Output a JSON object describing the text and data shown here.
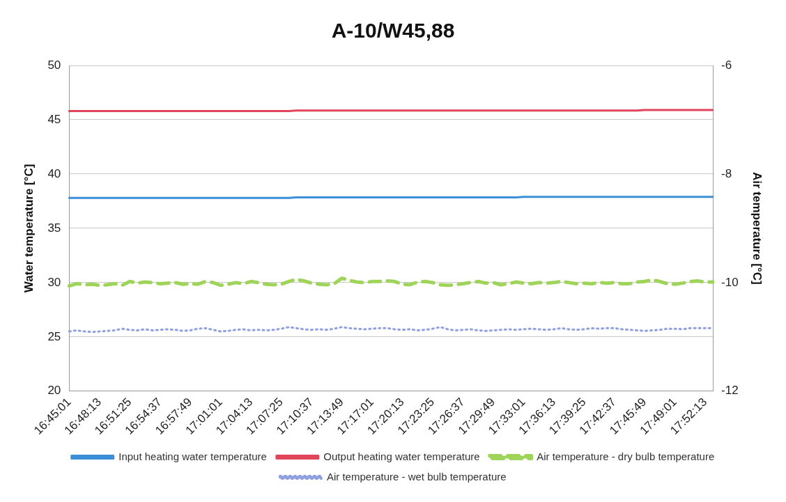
{
  "chart_data": {
    "type": "line",
    "title": "A-10/W45,88",
    "ylabel": "Water temperature [°C]",
    "y2label": "Air temperature [°C]",
    "categories": [
      "16:45:01",
      null,
      null,
      null,
      "16:48:13",
      null,
      null,
      null,
      "16:51:25",
      null,
      null,
      null,
      "16:54:37",
      null,
      null,
      null,
      "16:57:49",
      null,
      null,
      null,
      "17:01:01",
      null,
      null,
      null,
      "17:04:13",
      null,
      null,
      null,
      "17:07:25",
      null,
      null,
      null,
      "17:10:37",
      null,
      null,
      null,
      "17:13:49",
      null,
      null,
      null,
      "17:17:01",
      null,
      null,
      null,
      "17:20:13",
      null,
      null,
      null,
      "17:23:25",
      null,
      null,
      null,
      "17:26:37",
      null,
      null,
      null,
      "17:29:49",
      null,
      null,
      null,
      "17:33:01",
      null,
      null,
      null,
      "17:36:13",
      null,
      null,
      null,
      "17:39:25",
      null,
      null,
      null,
      "17:42:37",
      null,
      null,
      null,
      "17:45:49",
      null,
      null,
      null,
      "17:49:01",
      null,
      null,
      null,
      "17:52:13",
      null
    ],
    "series": [
      {
        "name": "Input heating water temperature",
        "color": "#3a8fd6",
        "line_style": "solid",
        "values": [
          37.8,
          37.8,
          37.8,
          37.8,
          37.8,
          37.8,
          37.8,
          37.8,
          37.8,
          37.8,
          37.8,
          37.8,
          37.8,
          37.8,
          37.8,
          37.8,
          37.8,
          37.8,
          37.8,
          37.8,
          37.8,
          37.8,
          37.8,
          37.8,
          37.8,
          37.8,
          37.8,
          37.8,
          37.8,
          37.8,
          37.85,
          37.85,
          37.85,
          37.85,
          37.85,
          37.85,
          37.85,
          37.85,
          37.85,
          37.85,
          37.85,
          37.85,
          37.85,
          37.85,
          37.85,
          37.85,
          37.85,
          37.85,
          37.85,
          37.85,
          37.85,
          37.85,
          37.85,
          37.85,
          37.85,
          37.85,
          37.85,
          37.85,
          37.85,
          37.85,
          37.9,
          37.9,
          37.9,
          37.9,
          37.9,
          37.9,
          37.9,
          37.9,
          37.9,
          37.9,
          37.9,
          37.9,
          37.9,
          37.9,
          37.9,
          37.9,
          37.9,
          37.9,
          37.9,
          37.9,
          37.9,
          37.9,
          37.9,
          37.9,
          37.9,
          37.9
        ]
      },
      {
        "name": "Output heating water temperature",
        "color": "#e0455a",
        "line_style": "solid",
        "values": [
          45.8,
          45.8,
          45.8,
          45.8,
          45.8,
          45.8,
          45.8,
          45.8,
          45.8,
          45.8,
          45.8,
          45.8,
          45.8,
          45.8,
          45.8,
          45.8,
          45.8,
          45.8,
          45.8,
          45.8,
          45.8,
          45.8,
          45.8,
          45.8,
          45.8,
          45.8,
          45.8,
          45.8,
          45.8,
          45.8,
          45.85,
          45.85,
          45.85,
          45.85,
          45.85,
          45.85,
          45.85,
          45.85,
          45.85,
          45.85,
          45.85,
          45.85,
          45.85,
          45.85,
          45.85,
          45.85,
          45.85,
          45.85,
          45.85,
          45.85,
          45.85,
          45.85,
          45.85,
          45.85,
          45.85,
          45.85,
          45.85,
          45.85,
          45.85,
          45.85,
          45.85,
          45.85,
          45.85,
          45.85,
          45.85,
          45.85,
          45.85,
          45.85,
          45.85,
          45.85,
          45.85,
          45.85,
          45.85,
          45.85,
          45.85,
          45.85,
          45.9,
          45.9,
          45.9,
          45.9,
          45.9,
          45.9,
          45.9,
          45.9,
          45.9,
          45.9
        ]
      },
      {
        "name": "Air temperature - dry bulb temperature",
        "color": "#9ed45a",
        "axis": "y2",
        "line_style": "dashed",
        "values": [
          -10.06,
          -10.02,
          -10.04,
          -10.03,
          -10.05,
          -10.04,
          -10.02,
          -10.05,
          -9.98,
          -10.01,
          -9.99,
          -10.0,
          -10.02,
          -10.01,
          -10.0,
          -10.03,
          -10.02,
          -10.03,
          -9.98,
          -10.0,
          -10.05,
          -10.03,
          -10.0,
          -10.02,
          -9.98,
          -10.0,
          -10.03,
          -10.04,
          -10.03,
          -9.98,
          -9.94,
          -9.97,
          -10.01,
          -10.03,
          -10.04,
          -10.02,
          -9.92,
          -9.96,
          -9.99,
          -10.0,
          -9.98,
          -9.98,
          -9.97,
          -9.98,
          -10.03,
          -10.04,
          -9.99,
          -9.98,
          -10.0,
          -10.04,
          -10.05,
          -10.04,
          -10.02,
          -10.0,
          -9.98,
          -10.01,
          -10.0,
          -10.04,
          -10.02,
          -9.99,
          -10.01,
          -10.02,
          -10.0,
          -10.01,
          -10.0,
          -9.98,
          -10.0,
          -10.02,
          -10.01,
          -10.02,
          -10.0,
          -10.01,
          -10.0,
          -10.02,
          -10.02,
          -9.99,
          -9.98,
          -9.95,
          -9.98,
          -10.02,
          -10.03,
          -10.01,
          -9.98,
          -9.97,
          -9.99,
          -9.99
        ]
      },
      {
        "name": "Air temperature - wet bulb temperature",
        "color": "#8f9fe0",
        "axis": "y2",
        "line_style": "dotted",
        "values": [
          -10.9,
          -10.88,
          -10.9,
          -10.91,
          -10.9,
          -10.89,
          -10.88,
          -10.85,
          -10.87,
          -10.88,
          -10.86,
          -10.88,
          -10.87,
          -10.86,
          -10.87,
          -10.89,
          -10.88,
          -10.85,
          -10.84,
          -10.87,
          -10.9,
          -10.89,
          -10.87,
          -10.86,
          -10.88,
          -10.87,
          -10.88,
          -10.87,
          -10.85,
          -10.82,
          -10.84,
          -10.86,
          -10.87,
          -10.86,
          -10.87,
          -10.85,
          -10.82,
          -10.84,
          -10.85,
          -10.86,
          -10.85,
          -10.84,
          -10.84,
          -10.86,
          -10.87,
          -10.86,
          -10.88,
          -10.87,
          -10.85,
          -10.82,
          -10.86,
          -10.88,
          -10.87,
          -10.86,
          -10.88,
          -10.89,
          -10.88,
          -10.87,
          -10.86,
          -10.87,
          -10.86,
          -10.85,
          -10.86,
          -10.87,
          -10.86,
          -10.84,
          -10.86,
          -10.87,
          -10.86,
          -10.84,
          -10.85,
          -10.84,
          -10.84,
          -10.86,
          -10.87,
          -10.88,
          -10.89,
          -10.88,
          -10.87,
          -10.85,
          -10.85,
          -10.86,
          -10.84,
          -10.84,
          -10.84,
          -10.84
        ]
      }
    ],
    "ylim": [
      20,
      50
    ],
    "yticks": [
      20,
      25,
      30,
      35,
      40,
      45,
      50
    ],
    "y2lim": [
      -12,
      -6
    ],
    "y2ticks": [
      -12,
      -10,
      -8,
      -6
    ],
    "grid": "y",
    "legend": "bottom",
    "marker": "none"
  }
}
